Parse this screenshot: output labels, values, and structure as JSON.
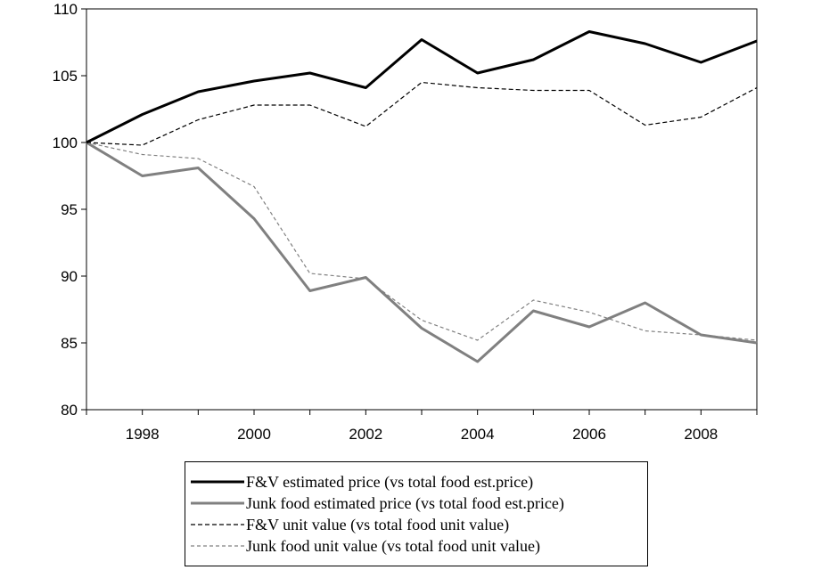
{
  "chart_data": {
    "type": "line",
    "x": [
      1997,
      1998,
      1999,
      2000,
      2001,
      2002,
      2003,
      2004,
      2005,
      2006,
      2007,
      2008,
      2009
    ],
    "x_tick_labels": [
      "1998",
      "2000",
      "2002",
      "2004",
      "2006",
      "2008"
    ],
    "x_ticks_every_year": true,
    "y_tick_labels": [
      "80",
      "85",
      "90",
      "95",
      "100",
      "105",
      "110"
    ],
    "ylim": [
      80,
      110
    ],
    "xlim": [
      1997,
      2009
    ],
    "grid": false,
    "legend_position": "bottom",
    "series": [
      {
        "name": "F&V estimated price (vs total food est.price)",
        "color": "#000000",
        "style": "solid",
        "width": "thick",
        "values": [
          100.0,
          102.1,
          103.8,
          104.6,
          105.2,
          104.1,
          107.7,
          105.2,
          106.2,
          108.3,
          107.4,
          106.0,
          107.6
        ]
      },
      {
        "name": "Junk food estimated price (vs total food est.price)",
        "color": "#808080",
        "style": "solid",
        "width": "thick",
        "values": [
          100.0,
          97.5,
          98.1,
          94.3,
          88.9,
          89.9,
          86.1,
          83.6,
          87.4,
          86.2,
          88.0,
          85.6,
          85.0
        ]
      },
      {
        "name": "F&V unit value (vs total food unit value)",
        "color": "#000000",
        "style": "dashed",
        "width": "thin",
        "values": [
          100.0,
          99.8,
          101.7,
          102.8,
          102.8,
          101.2,
          104.5,
          104.1,
          103.9,
          103.9,
          101.3,
          101.9,
          104.1
        ]
      },
      {
        "name": "Junk food unit value (vs total food unit value)",
        "color": "#808080",
        "style": "dashed",
        "width": "thin",
        "values": [
          100.0,
          99.1,
          98.8,
          96.7,
          90.2,
          89.8,
          86.7,
          85.2,
          88.2,
          87.3,
          85.9,
          85.6,
          85.2
        ]
      }
    ]
  }
}
